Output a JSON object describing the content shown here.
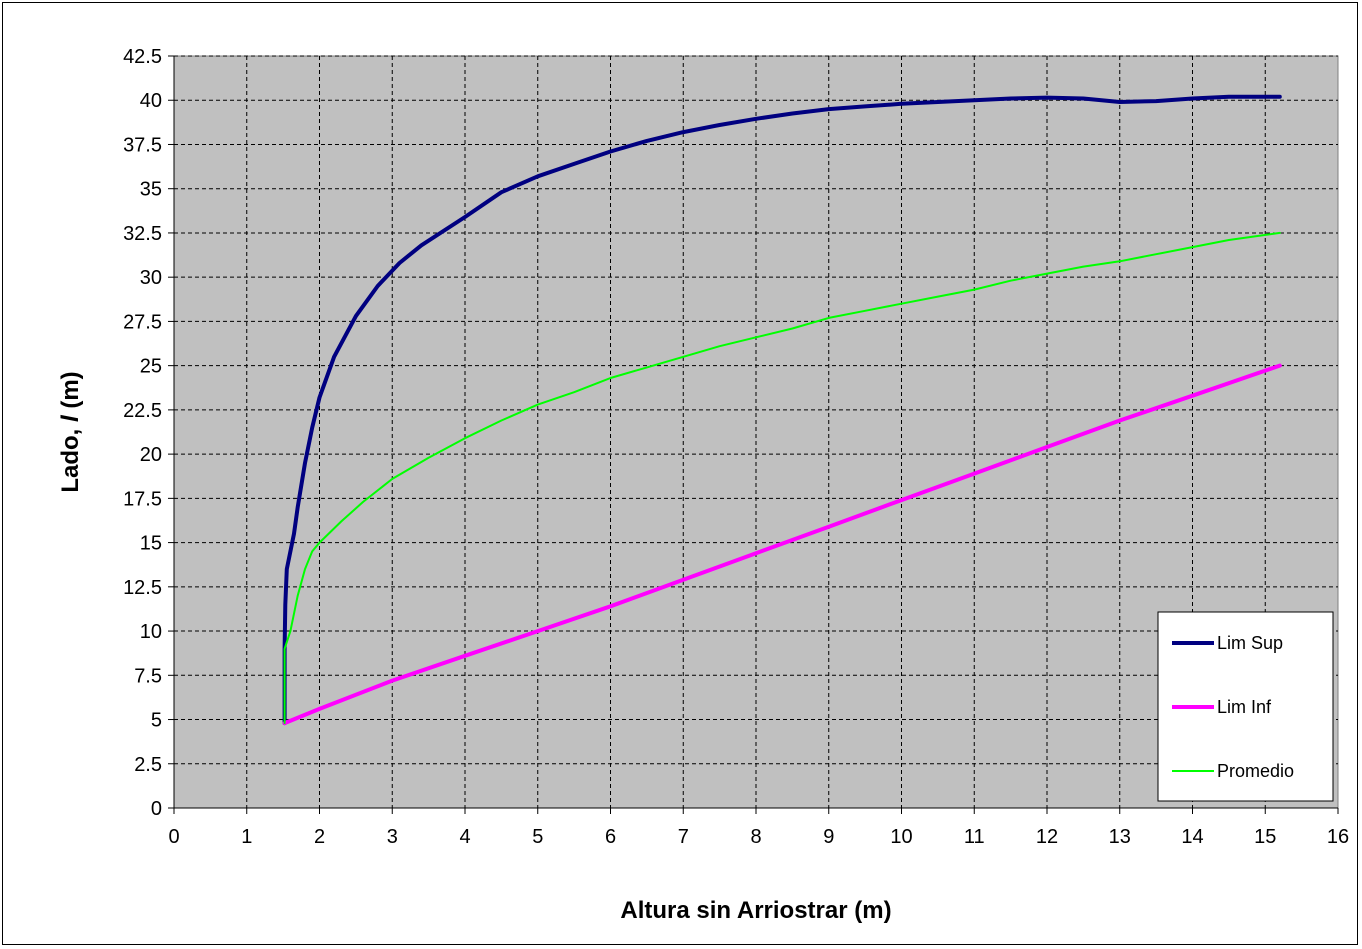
{
  "chart_data": {
    "type": "line",
    "title": "",
    "xlabel": "Altura sin Arriostrar (m)",
    "ylabel_parts": [
      "Lado, ",
      "l",
      " (m)"
    ],
    "xlim": [
      0,
      16
    ],
    "ylim": [
      0,
      42.5
    ],
    "x_ticks": [
      0,
      1,
      2,
      3,
      4,
      5,
      6,
      7,
      8,
      9,
      10,
      11,
      12,
      13,
      14,
      15,
      16
    ],
    "y_ticks": [
      0,
      2.5,
      5,
      7.5,
      10,
      12.5,
      15,
      17.5,
      20,
      22.5,
      25,
      27.5,
      30,
      32.5,
      35,
      37.5,
      40,
      42.5
    ],
    "y_tick_labels": [
      "0",
      "2.5",
      "5",
      "7.5",
      "10",
      "12.5",
      "15",
      "17.5",
      "20",
      "22.5",
      "25",
      "27.5",
      "30",
      "32.5",
      "35",
      "37.5",
      "40",
      "42.5"
    ],
    "grid": true,
    "plot_background": "#c0c0c0",
    "legend_position": "bottom-right",
    "series": [
      {
        "name": "Lim Sup",
        "color": "#000080",
        "width": 4,
        "points": [
          [
            1.52,
            4.8
          ],
          [
            1.52,
            9
          ],
          [
            1.53,
            11.5
          ],
          [
            1.55,
            13.5
          ],
          [
            1.6,
            14.5
          ],
          [
            1.65,
            15.5
          ],
          [
            1.7,
            17
          ],
          [
            1.8,
            19.5
          ],
          [
            1.9,
            21.5
          ],
          [
            2.0,
            23.2
          ],
          [
            2.2,
            25.5
          ],
          [
            2.5,
            27.8
          ],
          [
            2.8,
            29.5
          ],
          [
            3.1,
            30.8
          ],
          [
            3.4,
            31.8
          ],
          [
            4.0,
            33.4
          ],
          [
            4.5,
            34.8
          ],
          [
            5.0,
            35.7
          ],
          [
            5.5,
            36.4
          ],
          [
            6.0,
            37.1
          ],
          [
            6.5,
            37.7
          ],
          [
            7.0,
            38.2
          ],
          [
            7.5,
            38.6
          ],
          [
            8.0,
            38.95
          ],
          [
            8.5,
            39.25
          ],
          [
            9.0,
            39.5
          ],
          [
            9.5,
            39.65
          ],
          [
            10.0,
            39.8
          ],
          [
            10.5,
            39.9
          ],
          [
            11.0,
            40.0
          ],
          [
            11.5,
            40.1
          ],
          [
            12.0,
            40.15
          ],
          [
            12.5,
            40.1
          ],
          [
            13.0,
            39.9
          ],
          [
            13.5,
            39.95
          ],
          [
            14.0,
            40.1
          ],
          [
            14.5,
            40.2
          ],
          [
            15.2,
            40.2
          ]
        ]
      },
      {
        "name": "Lim Inf",
        "color": "#ff00ff",
        "width": 4,
        "points": [
          [
            1.52,
            4.8
          ],
          [
            2.0,
            5.6
          ],
          [
            3.0,
            7.2
          ],
          [
            4.0,
            8.6
          ],
          [
            5.0,
            10.0
          ],
          [
            6.0,
            11.4
          ],
          [
            7.0,
            12.9
          ],
          [
            8.0,
            14.4
          ],
          [
            9.0,
            15.9
          ],
          [
            10.0,
            17.4
          ],
          [
            11.0,
            18.9
          ],
          [
            12.0,
            20.4
          ],
          [
            13.0,
            21.9
          ],
          [
            14.0,
            23.3
          ],
          [
            15.2,
            25.0
          ]
        ]
      },
      {
        "name": "Promedio",
        "color": "#00ff00",
        "width": 2,
        "points": [
          [
            1.52,
            4.8
          ],
          [
            1.52,
            9
          ],
          [
            1.6,
            10
          ],
          [
            1.7,
            12
          ],
          [
            1.8,
            13.5
          ],
          [
            1.9,
            14.5
          ],
          [
            2.0,
            15.0
          ],
          [
            2.3,
            16.2
          ],
          [
            2.6,
            17.3
          ],
          [
            3.0,
            18.6
          ],
          [
            3.5,
            19.8
          ],
          [
            4.0,
            20.9
          ],
          [
            4.5,
            21.9
          ],
          [
            5.0,
            22.8
          ],
          [
            5.5,
            23.5
          ],
          [
            6.0,
            24.3
          ],
          [
            6.5,
            24.9
          ],
          [
            7.0,
            25.5
          ],
          [
            7.5,
            26.1
          ],
          [
            8.0,
            26.6
          ],
          [
            8.5,
            27.1
          ],
          [
            9.0,
            27.7
          ],
          [
            9.5,
            28.1
          ],
          [
            10.0,
            28.5
          ],
          [
            10.5,
            28.9
          ],
          [
            11.0,
            29.3
          ],
          [
            11.5,
            29.8
          ],
          [
            12.0,
            30.2
          ],
          [
            12.5,
            30.6
          ],
          [
            13.0,
            30.9
          ],
          [
            13.5,
            31.3
          ],
          [
            14.0,
            31.7
          ],
          [
            14.5,
            32.1
          ],
          [
            15.2,
            32.5
          ]
        ]
      }
    ]
  }
}
